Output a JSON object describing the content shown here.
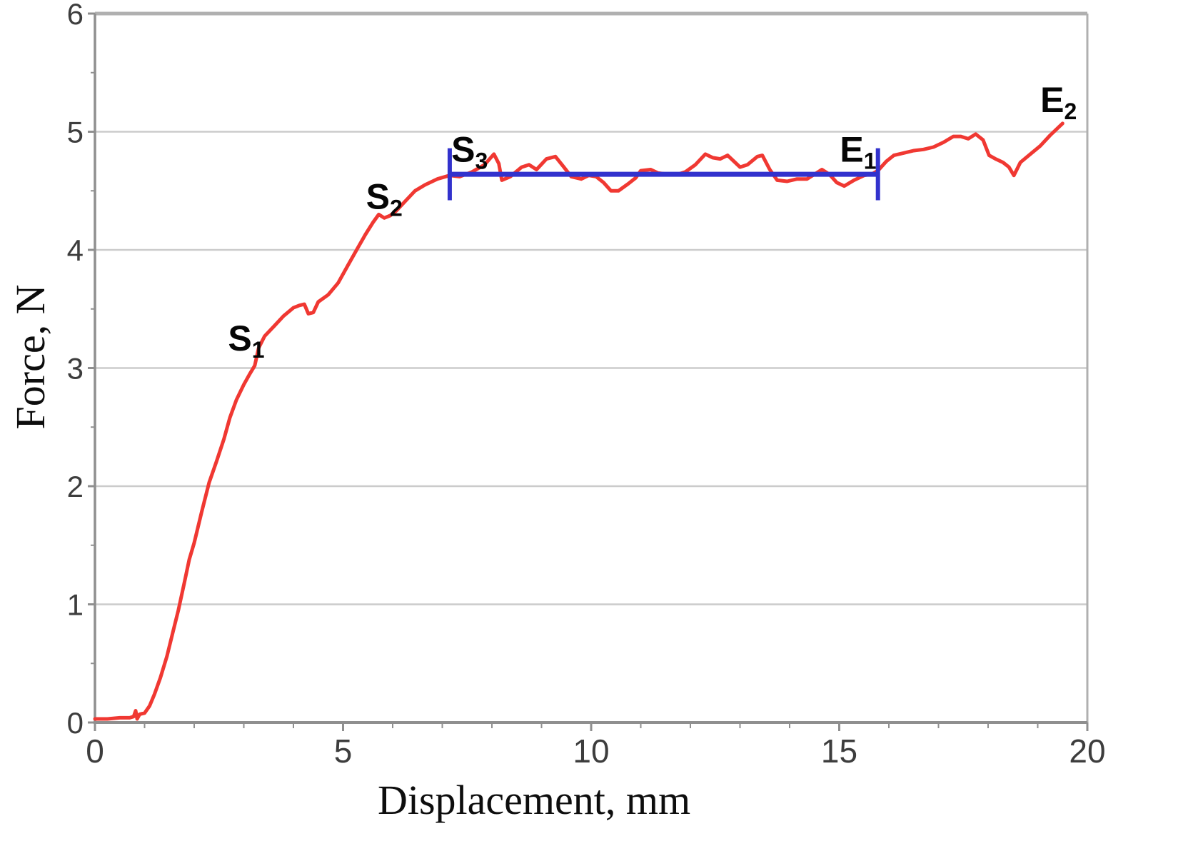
{
  "figure": {
    "background": "#ffffff"
  },
  "colors": {
    "curve": "#f03832",
    "refline": "#3232cd",
    "grid": "#cbcbcb",
    "axis": "#8f8f8f",
    "border": "#b0b0b0",
    "tick_text": "#3d3d3d",
    "label_text": "#0d0d0d"
  },
  "chart_data": {
    "type": "line",
    "title": "",
    "xlabel": "Displacement, mm",
    "ylabel": "Force, N",
    "xlim": [
      0,
      20
    ],
    "ylim": [
      0,
      6
    ],
    "x_ticks": [
      0,
      5,
      10,
      15,
      20
    ],
    "x_minor_tick_step": 1,
    "y_ticks": [
      0,
      1,
      2,
      3,
      4,
      5,
      6
    ],
    "y_minor_tick_step": 0.5,
    "grid": "horizontal-only",
    "legend": "none",
    "series": [
      {
        "name": "force-displacement-curve",
        "color": "#f03832",
        "points": [
          [
            0,
            0.03
          ],
          [
            0.25,
            0.03
          ],
          [
            0.5,
            0.04
          ],
          [
            0.7,
            0.04
          ],
          [
            0.78,
            0.05
          ],
          [
            0.82,
            0.1
          ],
          [
            0.85,
            0.03
          ],
          [
            0.9,
            0.07
          ],
          [
            1.0,
            0.08
          ],
          [
            1.1,
            0.14
          ],
          [
            1.2,
            0.24
          ],
          [
            1.32,
            0.38
          ],
          [
            1.45,
            0.56
          ],
          [
            1.58,
            0.78
          ],
          [
            1.68,
            0.95
          ],
          [
            1.8,
            1.18
          ],
          [
            1.9,
            1.38
          ],
          [
            2.0,
            1.52
          ],
          [
            2.15,
            1.78
          ],
          [
            2.3,
            2.03
          ],
          [
            2.45,
            2.21
          ],
          [
            2.6,
            2.4
          ],
          [
            2.72,
            2.58
          ],
          [
            2.85,
            2.73
          ],
          [
            3.0,
            2.86
          ],
          [
            3.12,
            2.95
          ],
          [
            3.22,
            3.02
          ],
          [
            3.3,
            3.17
          ],
          [
            3.42,
            3.27
          ],
          [
            3.6,
            3.35
          ],
          [
            3.8,
            3.44
          ],
          [
            4.0,
            3.51
          ],
          [
            4.12,
            3.53
          ],
          [
            4.22,
            3.54
          ],
          [
            4.3,
            3.46
          ],
          [
            4.4,
            3.47
          ],
          [
            4.5,
            3.56
          ],
          [
            4.7,
            3.62
          ],
          [
            4.9,
            3.72
          ],
          [
            5.1,
            3.87
          ],
          [
            5.3,
            4.02
          ],
          [
            5.45,
            4.13
          ],
          [
            5.6,
            4.23
          ],
          [
            5.72,
            4.3
          ],
          [
            5.83,
            4.27
          ],
          [
            5.95,
            4.29
          ],
          [
            6.07,
            4.33
          ],
          [
            6.25,
            4.41
          ],
          [
            6.45,
            4.5
          ],
          [
            6.65,
            4.55
          ],
          [
            6.9,
            4.6
          ],
          [
            7.15,
            4.63
          ],
          [
            7.35,
            4.62
          ],
          [
            7.6,
            4.66
          ],
          [
            7.85,
            4.72
          ],
          [
            8.04,
            4.81
          ],
          [
            8.14,
            4.73
          ],
          [
            8.2,
            4.59
          ],
          [
            8.37,
            4.62
          ],
          [
            8.6,
            4.7
          ],
          [
            8.75,
            4.72
          ],
          [
            8.9,
            4.68
          ],
          [
            9.1,
            4.77
          ],
          [
            9.28,
            4.79
          ],
          [
            9.45,
            4.7
          ],
          [
            9.6,
            4.62
          ],
          [
            9.8,
            4.6
          ],
          [
            9.95,
            4.63
          ],
          [
            10.1,
            4.62
          ],
          [
            10.25,
            4.57
          ],
          [
            10.4,
            4.5
          ],
          [
            10.55,
            4.5
          ],
          [
            10.75,
            4.56
          ],
          [
            10.9,
            4.61
          ],
          [
            11.0,
            4.67
          ],
          [
            11.2,
            4.68
          ],
          [
            11.35,
            4.65
          ],
          [
            11.55,
            4.64
          ],
          [
            11.75,
            4.64
          ],
          [
            11.9,
            4.66
          ],
          [
            12.1,
            4.72
          ],
          [
            12.3,
            4.81
          ],
          [
            12.45,
            4.78
          ],
          [
            12.6,
            4.77
          ],
          [
            12.75,
            4.8
          ],
          [
            12.9,
            4.74
          ],
          [
            13.0,
            4.7
          ],
          [
            13.15,
            4.72
          ],
          [
            13.35,
            4.79
          ],
          [
            13.45,
            4.8
          ],
          [
            13.6,
            4.68
          ],
          [
            13.75,
            4.59
          ],
          [
            13.95,
            4.58
          ],
          [
            14.15,
            4.6
          ],
          [
            14.35,
            4.6
          ],
          [
            14.5,
            4.64
          ],
          [
            14.65,
            4.68
          ],
          [
            14.8,
            4.64
          ],
          [
            14.95,
            4.57
          ],
          [
            15.1,
            4.54
          ],
          [
            15.3,
            4.59
          ],
          [
            15.5,
            4.63
          ],
          [
            15.65,
            4.64
          ],
          [
            15.78,
            4.67
          ],
          [
            15.95,
            4.75
          ],
          [
            16.1,
            4.8
          ],
          [
            16.3,
            4.82
          ],
          [
            16.5,
            4.84
          ],
          [
            16.7,
            4.85
          ],
          [
            16.9,
            4.87
          ],
          [
            17.1,
            4.91
          ],
          [
            17.3,
            4.96
          ],
          [
            17.45,
            4.96
          ],
          [
            17.6,
            4.94
          ],
          [
            17.75,
            4.98
          ],
          [
            17.9,
            4.93
          ],
          [
            18.02,
            4.8
          ],
          [
            18.15,
            4.77
          ],
          [
            18.3,
            4.74
          ],
          [
            18.42,
            4.7
          ],
          [
            18.52,
            4.63
          ],
          [
            18.65,
            4.74
          ],
          [
            18.85,
            4.81
          ],
          [
            19.05,
            4.88
          ],
          [
            19.25,
            4.97
          ],
          [
            19.5,
            5.07
          ]
        ]
      }
    ],
    "reference_line": {
      "y": 4.64,
      "x_start": 7.15,
      "x_end": 15.78,
      "cap_half_height": 0.22,
      "color": "#3232cd"
    },
    "annotations": [
      {
        "main": "S",
        "sub": "1",
        "x": 3.05,
        "y": 3.25
      },
      {
        "main": "S",
        "sub": "2",
        "x": 5.83,
        "y": 4.45
      },
      {
        "main": "S",
        "sub": "3",
        "x": 7.55,
        "y": 4.85
      },
      {
        "main": "E",
        "sub": "1",
        "x": 15.38,
        "y": 4.85
      },
      {
        "main": "E",
        "sub": "2",
        "x": 19.42,
        "y": 5.27
      }
    ]
  }
}
